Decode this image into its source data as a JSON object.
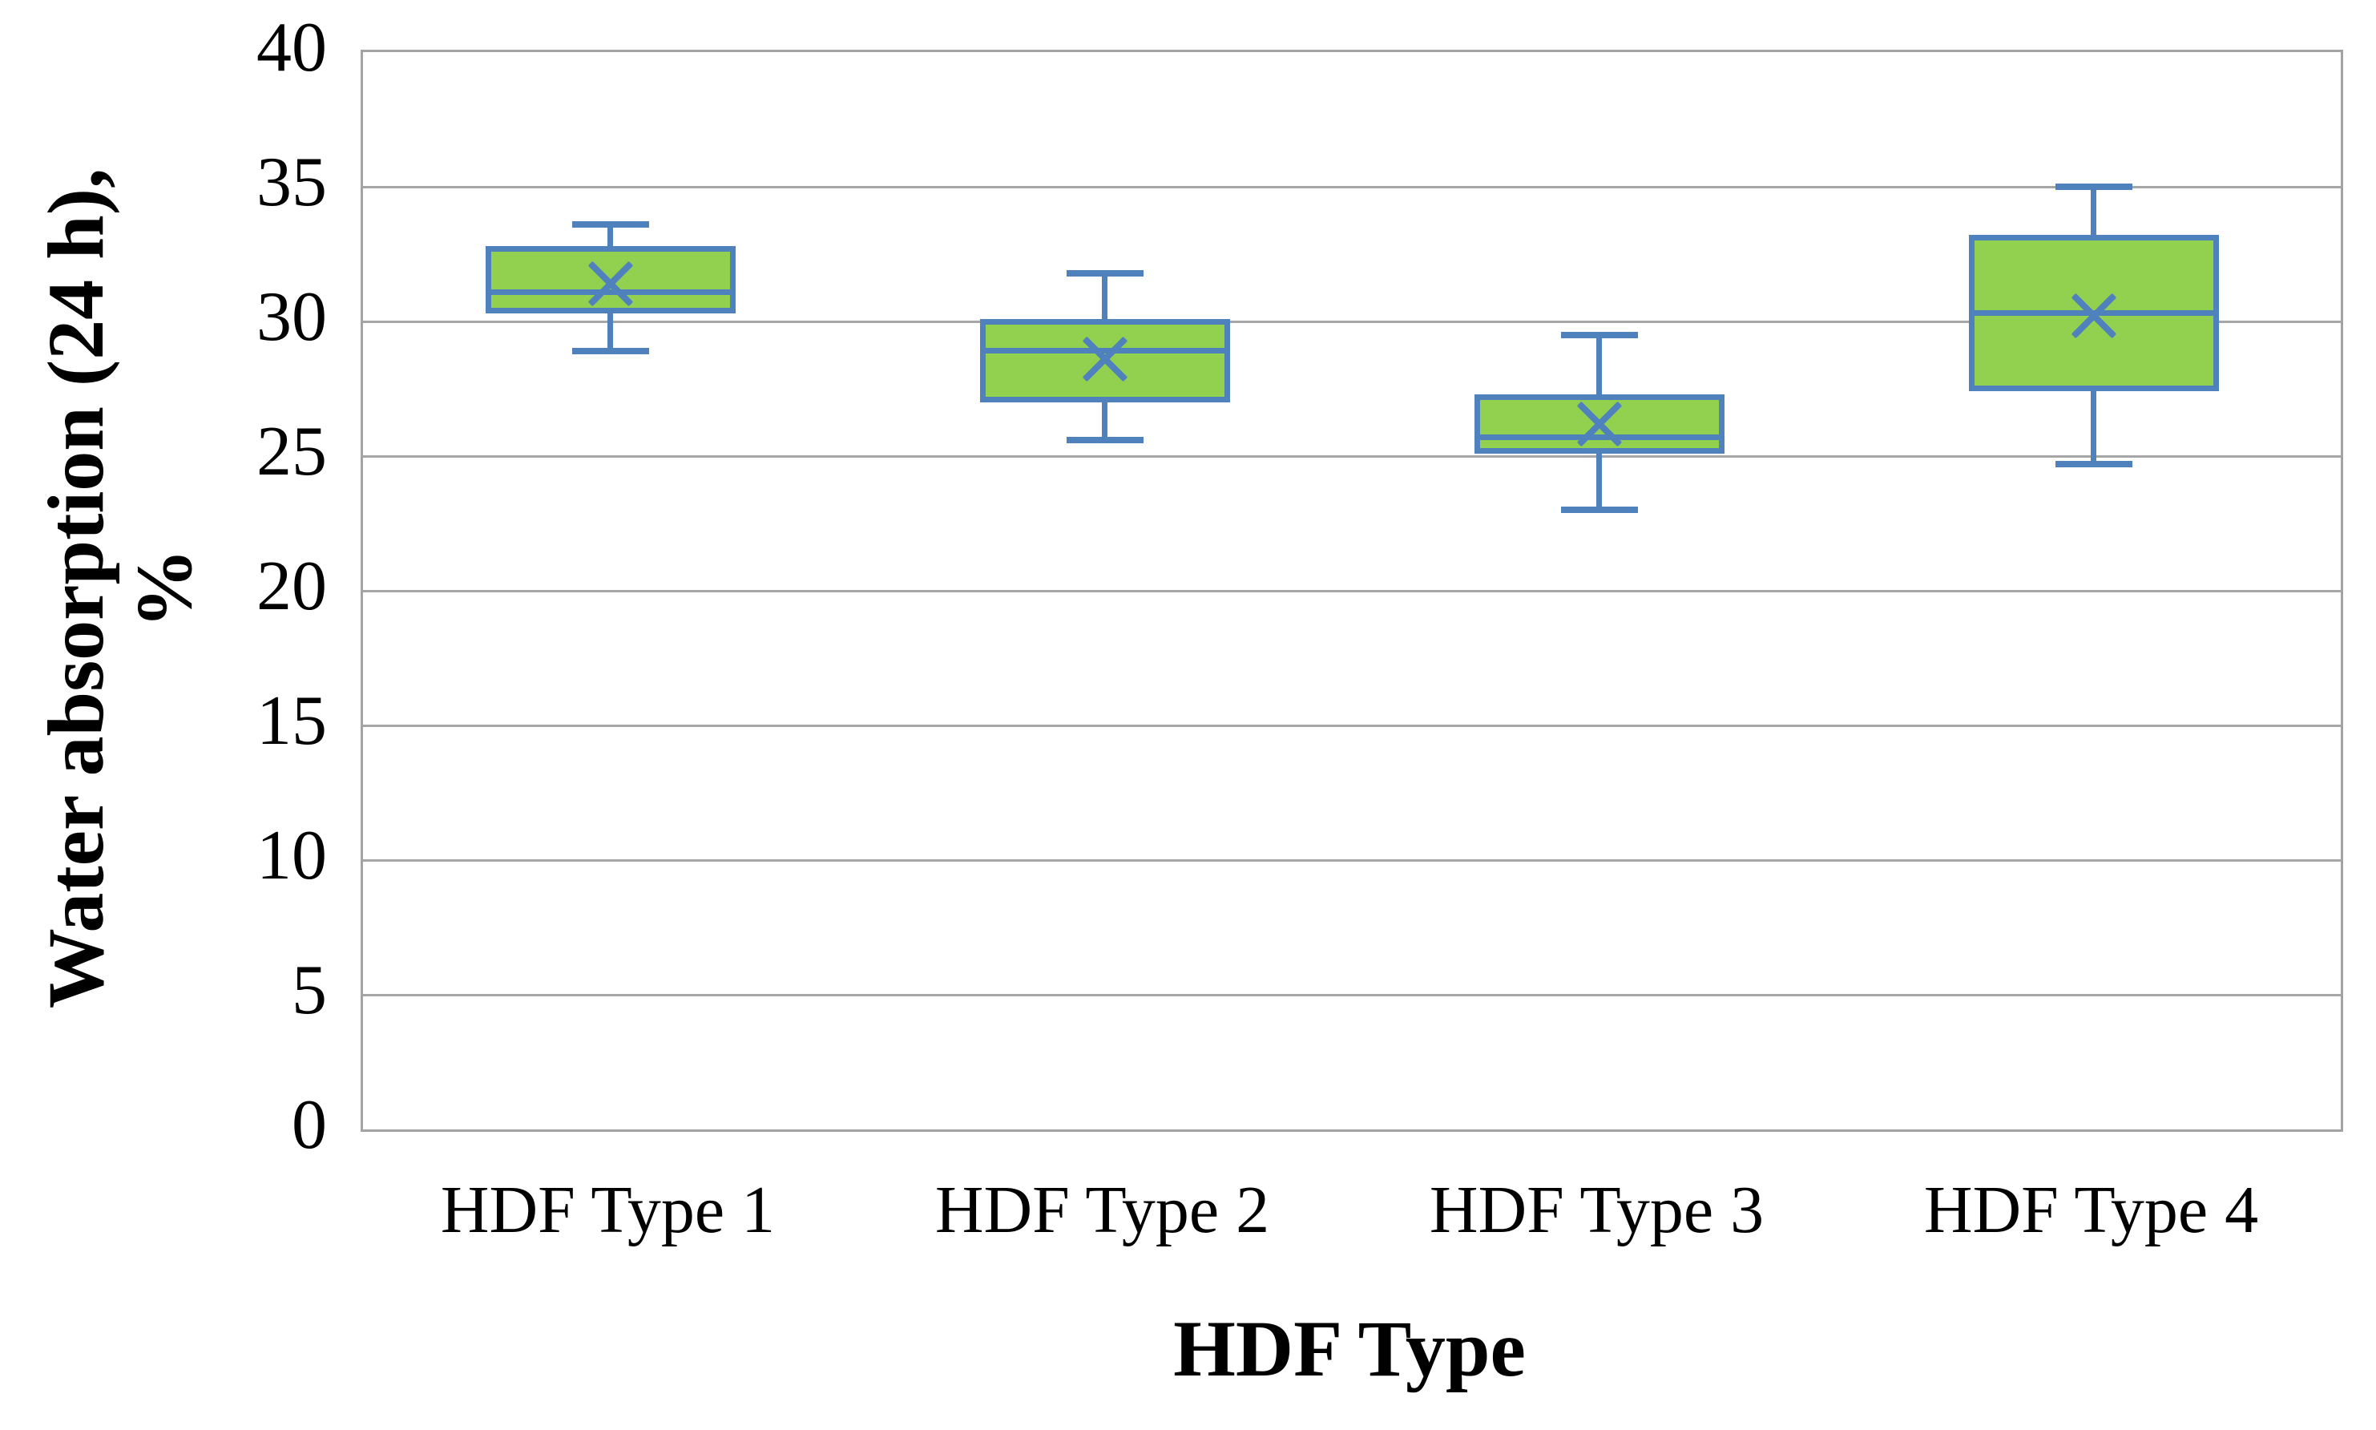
{
  "chart_data": {
    "type": "boxplot",
    "title": "",
    "xlabel": "HDF Type",
    "ylabel": "Water absorption (24 h), %",
    "ylabel_lines": [
      "Water absorption (24 h),",
      "%"
    ],
    "categories": [
      "HDF Type 1",
      "HDF Type 2",
      "HDF Type 3",
      "HDF Type 4"
    ],
    "ylim": [
      0,
      40
    ],
    "yticks": [
      0,
      5,
      10,
      15,
      20,
      25,
      30,
      35,
      40
    ],
    "grid": true,
    "legend": "none",
    "series": [
      {
        "name": "HDF Type 1",
        "min": 28.9,
        "q1": 30.3,
        "median": 31.1,
        "mean": 31.4,
        "q3": 32.8,
        "max": 33.6
      },
      {
        "name": "HDF Type 2",
        "min": 25.6,
        "q1": 27.0,
        "median": 28.9,
        "mean": 28.6,
        "q3": 30.1,
        "max": 31.8
      },
      {
        "name": "HDF Type 3",
        "min": 23.0,
        "q1": 25.1,
        "median": 25.7,
        "mean": 26.2,
        "q3": 27.3,
        "max": 29.5
      },
      {
        "name": "HDF Type 4",
        "min": 24.7,
        "q1": 27.4,
        "median": 30.3,
        "mean": 30.2,
        "q3": 33.2,
        "max": 35.0
      }
    ],
    "colors": {
      "box_fill": "#92D050",
      "box_border": "#4F81BD",
      "grid": "#A6A6A6",
      "plot_border": "#A3A3A3",
      "text": "#000000"
    }
  }
}
